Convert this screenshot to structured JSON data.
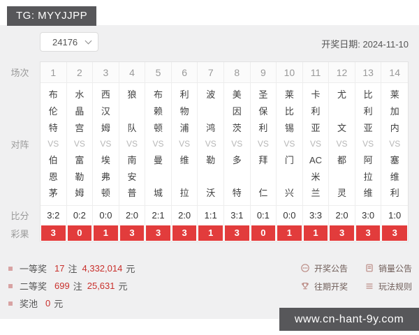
{
  "badges": {
    "tg": "TG: MYYJJPP",
    "watermark": "www.cn-hant-9y.com"
  },
  "header": {
    "issue": "24176",
    "date_label": "开奖日期:",
    "date_value": "2024-11-10"
  },
  "table": {
    "row_labels": {
      "session": "场次",
      "versus": "对阵",
      "score": "比分",
      "result": "彩果"
    },
    "vs_label": "VS",
    "matches": [
      {
        "no": "1",
        "home": [
          "布",
          "伦",
          "特"
        ],
        "away": [
          "伯",
          "恩",
          "茅"
        ],
        "score": "3:2",
        "result": "3"
      },
      {
        "no": "2",
        "home": [
          "水",
          "晶",
          "宫"
        ],
        "away": [
          "富",
          "勒",
          "姆"
        ],
        "score": "0:2",
        "result": "0"
      },
      {
        "no": "3",
        "home": [
          "西",
          "汉",
          "姆"
        ],
        "away": [
          "埃",
          "弗",
          "顿"
        ],
        "score": "0:0",
        "result": "1"
      },
      {
        "no": "4",
        "home": [
          "狼",
          "队"
        ],
        "away": [
          "南",
          "安",
          "普"
        ],
        "score": "2:0",
        "result": "3"
      },
      {
        "no": "5",
        "home": [
          "布",
          "赖",
          "顿"
        ],
        "away": [
          "曼",
          "城"
        ],
        "score": "2:1",
        "result": "3"
      },
      {
        "no": "6",
        "home": [
          "利",
          "物",
          "浦"
        ],
        "away": [
          "维",
          "拉"
        ],
        "score": "2:0",
        "result": "3"
      },
      {
        "no": "7",
        "home": [
          "波",
          "鸿"
        ],
        "away": [
          "勒",
          "沃"
        ],
        "score": "1:1",
        "result": "1"
      },
      {
        "no": "8",
        "home": [
          "美",
          "因",
          "茨"
        ],
        "away": [
          "多",
          "特"
        ],
        "score": "3:1",
        "result": "3"
      },
      {
        "no": "9",
        "home": [
          "圣",
          "保",
          "利"
        ],
        "away": [
          "拜",
          "仁"
        ],
        "score": "0:1",
        "result": "0"
      },
      {
        "no": "10",
        "home": [
          "莱",
          "比",
          "锡"
        ],
        "away": [
          "门",
          "兴"
        ],
        "score": "0:0",
        "result": "1"
      },
      {
        "no": "11",
        "home": [
          "卡",
          "利",
          "亚"
        ],
        "away": [
          "AC",
          "米",
          "兰"
        ],
        "score": "3:3",
        "result": "1"
      },
      {
        "no": "12",
        "home": [
          "尤",
          "文"
        ],
        "away": [
          "都",
          "灵"
        ],
        "score": "2:0",
        "result": "3"
      },
      {
        "no": "13",
        "home": [
          "比",
          "利",
          "亚"
        ],
        "away": [
          "阿",
          "拉",
          "维"
        ],
        "score": "3:0",
        "result": "3"
      },
      {
        "no": "14",
        "home": [
          "莱",
          "加",
          "内"
        ],
        "away": [
          "塞",
          "维",
          "利"
        ],
        "score": "1:0",
        "result": "3"
      }
    ]
  },
  "prizes": [
    {
      "label": "一等奖",
      "values": [
        {
          "num": "17",
          "suffix": "注"
        },
        {
          "num": "4,332,014",
          "suffix": "元"
        }
      ]
    },
    {
      "label": "二等奖",
      "values": [
        {
          "num": "699",
          "suffix": "注"
        },
        {
          "num": "25,631",
          "suffix": "元"
        }
      ]
    },
    {
      "label": "奖池",
      "values": [
        {
          "num": "0",
          "suffix": "元"
        }
      ]
    }
  ],
  "links": [
    {
      "label": "开奖公告",
      "icon": "announcement-icon"
    },
    {
      "label": "销量公告",
      "icon": "sales-report-icon"
    },
    {
      "label": "往期开奖",
      "icon": "trophy-icon"
    },
    {
      "label": "玩法规则",
      "icon": "rules-icon"
    }
  ],
  "colors": {
    "result_red": "#e23c3c",
    "prize_number_red": "#c9302c",
    "badge_bg": "#57575a",
    "panel_bg": "#f0f0f1"
  }
}
